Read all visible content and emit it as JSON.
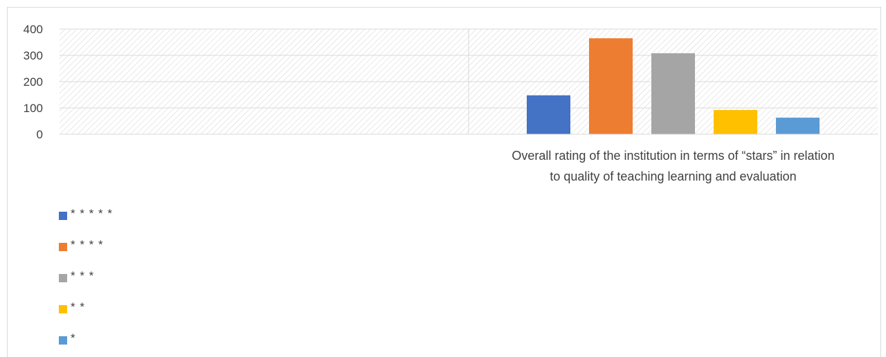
{
  "chart_data": {
    "type": "bar",
    "categories": [
      "",
      "Overall rating of the institution in terms of “stars” in relation to quality of teaching learning and evaluation"
    ],
    "category_label_lines": [
      [],
      [
        "Overall rating of the institution in terms of “stars” in relation",
        "to quality of teaching learning and evaluation"
      ]
    ],
    "series": [
      {
        "name": "* * * * *",
        "color": "#4472C4",
        "values": [
          null,
          148
        ]
      },
      {
        "name": "* * * *",
        "color": "#ED7D31",
        "values": [
          null,
          365
        ]
      },
      {
        "name": "* * *",
        "color": "#A5A5A5",
        "values": [
          null,
          308
        ]
      },
      {
        "name": "* *",
        "color": "#FFC000",
        "values": [
          null,
          92
        ]
      },
      {
        "name": "*",
        "color": "#5B9BD5",
        "values": [
          null,
          63
        ]
      }
    ],
    "ylim": [
      0,
      400
    ],
    "yticks": [
      0,
      100,
      200,
      300,
      400
    ],
    "grid": true,
    "legend_position": "bottom-left",
    "title": "",
    "xlabel": "",
    "ylabel": ""
  }
}
